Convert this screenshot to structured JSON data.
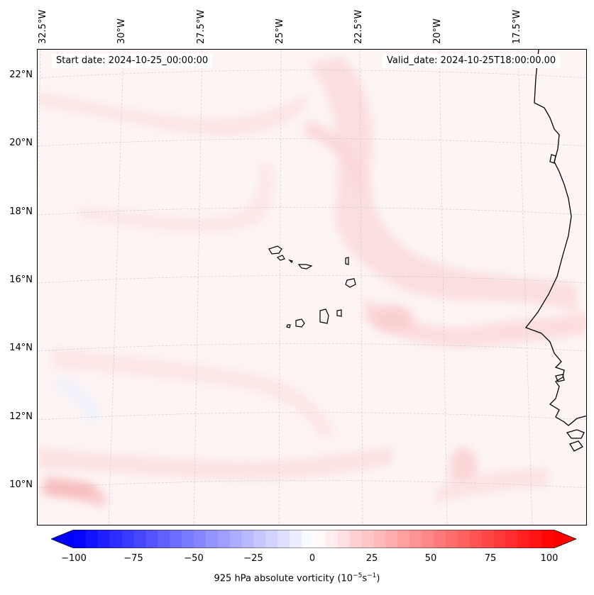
{
  "map": {
    "start_date_text": "Start date: 2024-10-25_00:00:00",
    "valid_date_text": "Valid_date: 2024-10-25T18:00:00.00",
    "lon_labels": [
      "32.5°W",
      "30°W",
      "27.5°W",
      "25°W",
      "22.5°W",
      "20°W",
      "17.5°W"
    ],
    "lat_labels": [
      "22°N",
      "20°N",
      "18°N",
      "16°N",
      "14°N",
      "12°N",
      "10°N"
    ],
    "field": "925 hPa absolute vorticity",
    "features": [
      "Cape Verde islands",
      "West African coastline"
    ],
    "colors": {
      "positive": "#ff0000",
      "negative": "#0000ff",
      "background_field": "#fdf4f4",
      "coastline": "#000000"
    }
  },
  "colorbar": {
    "ticks": [
      "−100",
      "−75",
      "−50",
      "−25",
      "0",
      "25",
      "50",
      "75",
      "100"
    ],
    "min": -100,
    "max": 100,
    "label_prefix": "925 hPa absolute vorticity (10",
    "label_exp1": "−5",
    "label_mid": "s",
    "label_exp2": "−1",
    "label_suffix": ")"
  }
}
